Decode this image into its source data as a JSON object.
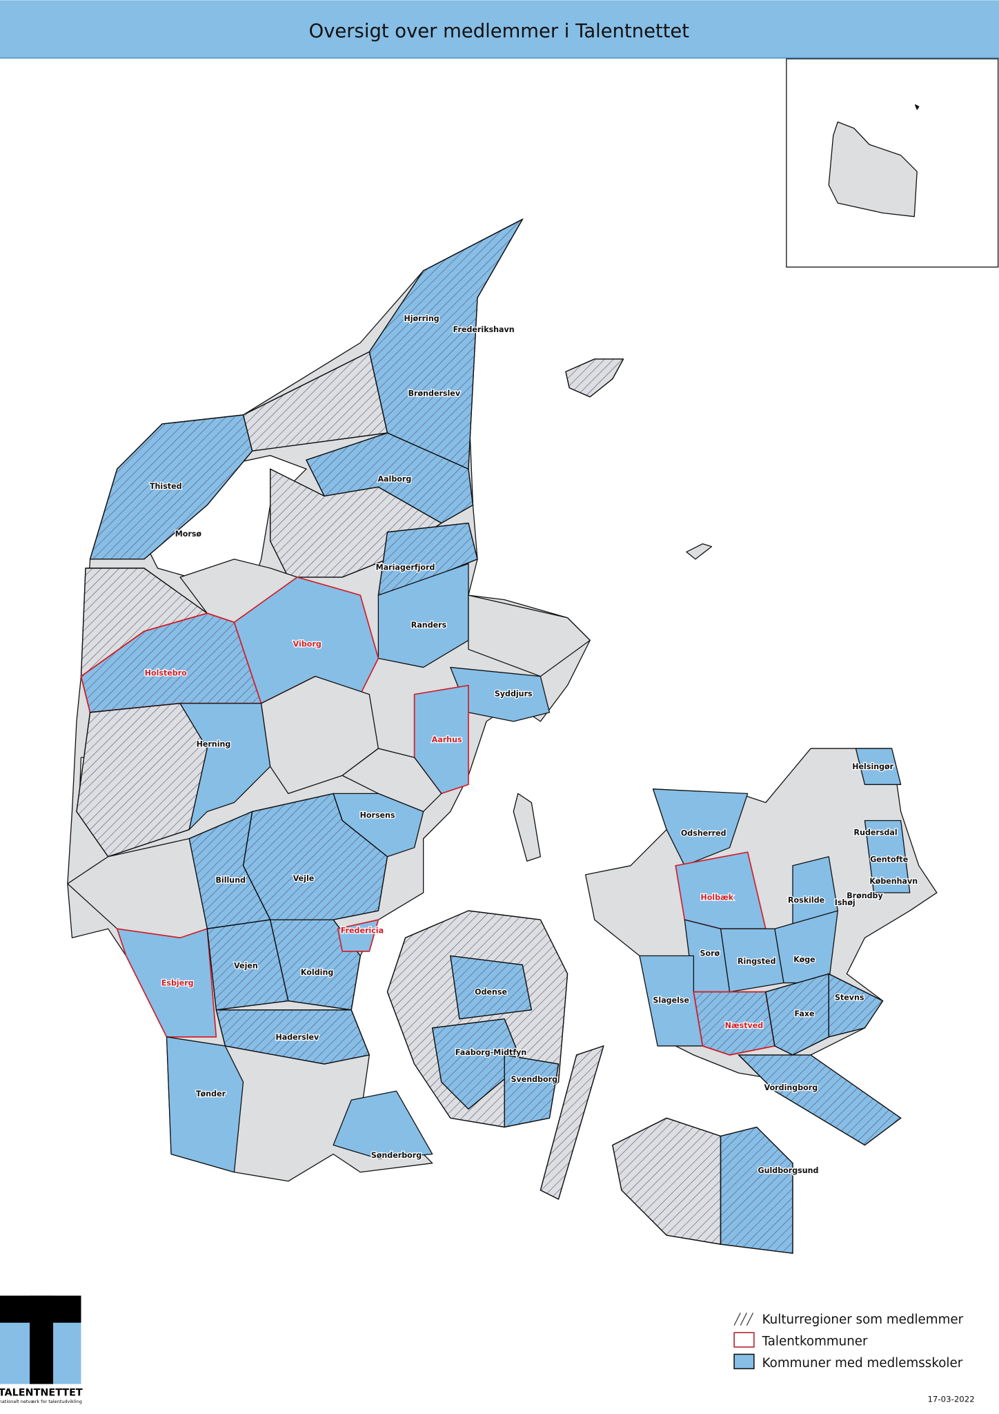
{
  "header": {
    "title": "Oversigt over medlemmer i Talentnettet"
  },
  "colors": {
    "header_bg": "#86bee6",
    "member_fill": "#86bee6",
    "other_fill": "#dcdee0",
    "talent_outline": "#d0202a"
  },
  "map": {
    "labels": [
      {
        "name": "Hjørring",
        "talent": false
      },
      {
        "name": "Frederikshavn",
        "talent": false
      },
      {
        "name": "Brønderslev",
        "talent": false
      },
      {
        "name": "Thisted",
        "talent": false
      },
      {
        "name": "Aalborg",
        "talent": false
      },
      {
        "name": "Morsø",
        "talent": false
      },
      {
        "name": "Mariagerfjord",
        "talent": false
      },
      {
        "name": "Randers",
        "talent": false
      },
      {
        "name": "Viborg",
        "talent": true
      },
      {
        "name": "Holstebro",
        "talent": true
      },
      {
        "name": "Syddjurs",
        "talent": false
      },
      {
        "name": "Herning",
        "talent": false
      },
      {
        "name": "Aarhus",
        "talent": true
      },
      {
        "name": "Horsens",
        "talent": false
      },
      {
        "name": "Billund",
        "talent": false
      },
      {
        "name": "Vejle",
        "talent": false
      },
      {
        "name": "Fredericia",
        "talent": true
      },
      {
        "name": "Vejen",
        "talent": false
      },
      {
        "name": "Kolding",
        "talent": false
      },
      {
        "name": "Esbjerg",
        "talent": true
      },
      {
        "name": "Haderslev",
        "talent": false
      },
      {
        "name": "Tønder",
        "talent": false
      },
      {
        "name": "Odense",
        "talent": false
      },
      {
        "name": "Faaborg-Midtfyn",
        "talent": false
      },
      {
        "name": "Svendborg",
        "talent": false
      },
      {
        "name": "Sønderborg",
        "talent": false
      },
      {
        "name": "Helsingør",
        "talent": false
      },
      {
        "name": "Odsherred",
        "talent": false
      },
      {
        "name": "Rudersdal",
        "talent": false
      },
      {
        "name": "Gentofte",
        "talent": false
      },
      {
        "name": "København",
        "talent": false
      },
      {
        "name": "Holbæk",
        "talent": true
      },
      {
        "name": "Roskilde",
        "talent": false
      },
      {
        "name": "Brøndby",
        "talent": false
      },
      {
        "name": "Ishøj",
        "talent": false
      },
      {
        "name": "Sorø",
        "talent": false
      },
      {
        "name": "Ringsted",
        "talent": false
      },
      {
        "name": "Køge",
        "talent": false
      },
      {
        "name": "Slagelse",
        "talent": false
      },
      {
        "name": "Stevns",
        "talent": false
      },
      {
        "name": "Næstved",
        "talent": true
      },
      {
        "name": "Faxe",
        "talent": false
      },
      {
        "name": "Vordingborg",
        "talent": false
      },
      {
        "name": "Guldborgsund",
        "talent": false
      }
    ]
  },
  "legend": {
    "items": [
      {
        "label": "Kulturregioner som medlemmer",
        "symbol": "hatch"
      },
      {
        "label": "Talentkommuner",
        "symbol": "red-outline"
      },
      {
        "label": "Kommuner med medlemsskoler",
        "symbol": "blue-fill"
      }
    ]
  },
  "logo": {
    "name": "TALENTNETTET",
    "tagline": "nationalt netværk for talentudvikling"
  },
  "footer": {
    "date": "17-03-2022"
  }
}
